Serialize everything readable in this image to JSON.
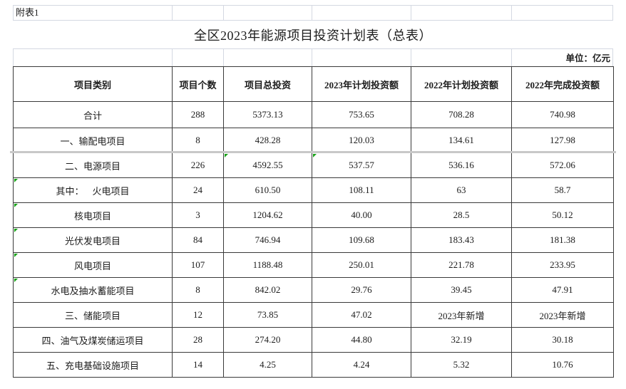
{
  "doc": {
    "sheet_label": "附表1",
    "title": "全区2023年能源项目投资计划表（总表）",
    "unit_note": "单位：亿元"
  },
  "table": {
    "headers": [
      "项目类别",
      "项目个数",
      "项目总投资",
      "2023年计划投资额",
      "2022年计划投资额",
      "2022年完成投资额"
    ],
    "rows": [
      {
        "label": "合计",
        "align": "center",
        "values": [
          "288",
          "5373.13",
          "753.65",
          "708.28",
          "740.98"
        ],
        "green": []
      },
      {
        "label": "一、输配电项目",
        "align": "left",
        "values": [
          "8",
          "428.28",
          "120.03",
          "134.61",
          "127.98"
        ],
        "green": []
      },
      {
        "label": "二、电源项目",
        "align": "left",
        "values": [
          "226",
          "4592.55",
          "537.57",
          "536.16",
          "572.06"
        ],
        "green": [
          2,
          3
        ]
      },
      {
        "label": "其中：",
        "label2": "火电项目",
        "align": "qz",
        "values": [
          "24",
          "610.50",
          "108.11",
          "63",
          "58.7"
        ],
        "green": [
          0
        ]
      },
      {
        "label": "核电项目",
        "align": "indent",
        "values": [
          "3",
          "1204.62",
          "40.00",
          "28.5",
          "50.12"
        ],
        "green": [
          0
        ]
      },
      {
        "label": "光伏发电项目",
        "align": "indent",
        "values": [
          "84",
          "746.94",
          "109.68",
          "183.43",
          "181.38"
        ],
        "green": [
          0
        ]
      },
      {
        "label": "风电项目",
        "align": "indent",
        "values": [
          "107",
          "1188.48",
          "250.01",
          "221.78",
          "233.95"
        ],
        "green": [
          0
        ]
      },
      {
        "label": "水电及抽水蓄能项目",
        "align": "indent",
        "values": [
          "8",
          "842.02",
          "29.76",
          "39.45",
          "47.91"
        ],
        "green": [
          0
        ]
      },
      {
        "label": "三、储能项目",
        "align": "left",
        "values": [
          "12",
          "73.85",
          "47.02",
          "2023年新增",
          "2023年新增"
        ],
        "green": []
      },
      {
        "label": "四、油气及煤炭储运项目",
        "align": "left",
        "values": [
          "28",
          "274.20",
          "44.80",
          "32.19",
          "30.18"
        ],
        "green": []
      },
      {
        "label": "五、充电基础设施项目",
        "align": "left",
        "values": [
          "14",
          "4.25",
          "4.24",
          "5.32",
          "10.76"
        ],
        "green": []
      }
    ]
  },
  "colors": {
    "worksheet_gridline": "#d4d8e2",
    "table_border": "#3a3a3a",
    "green_indicator": "#17a317",
    "freeze_line": "#c8c8c8"
  }
}
